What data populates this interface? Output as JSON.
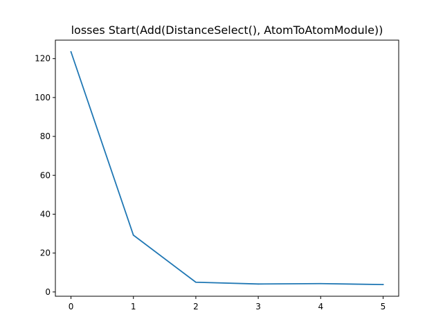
{
  "chart_data": {
    "type": "line",
    "title": "losses Start(Add(DistanceSelect(), AtomToAtomModule))",
    "xlabel": "",
    "ylabel": "",
    "x": [
      0,
      1,
      2,
      3,
      4,
      5
    ],
    "series": [
      {
        "values": [
          123.5,
          29.2,
          5.0,
          4.1,
          4.3,
          3.8
        ],
        "color": "#1f77b4"
      }
    ],
    "xlim": [
      -0.25,
      5.25
    ],
    "ylim": [
      -2.2,
      129.5
    ],
    "xticks": [
      0,
      1,
      2,
      3,
      4,
      5
    ],
    "xtick_labels": [
      "0",
      "1",
      "2",
      "3",
      "4",
      "5"
    ],
    "yticks": [
      0,
      20,
      40,
      60,
      80,
      100,
      120
    ],
    "ytick_labels": [
      "0",
      "20",
      "40",
      "60",
      "80",
      "100",
      "120"
    ],
    "grid": false,
    "legend": "none"
  }
}
